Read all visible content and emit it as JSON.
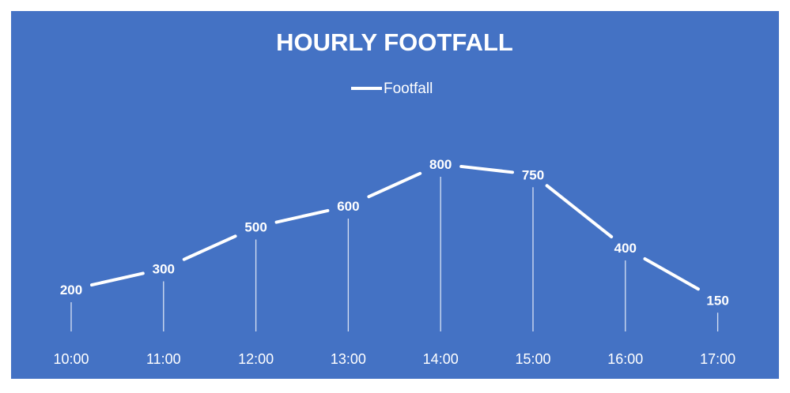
{
  "chart_data": {
    "type": "line",
    "title": "HOURLY FOOTFALL",
    "categories": [
      "10:00",
      "11:00",
      "12:00",
      "13:00",
      "14:00",
      "15:00",
      "16:00",
      "17:00"
    ],
    "series": [
      {
        "name": "Footfall",
        "values": [
          200,
          300,
          500,
          600,
          800,
          750,
          400,
          150
        ]
      }
    ],
    "ylim": [
      0,
      800
    ],
    "legend": "top",
    "drop_lines": true,
    "grid": false,
    "data_labels": true,
    "colors": {
      "background": "#4472c4",
      "line": "#ffffff",
      "drop_line": "#d9e2f3"
    }
  }
}
